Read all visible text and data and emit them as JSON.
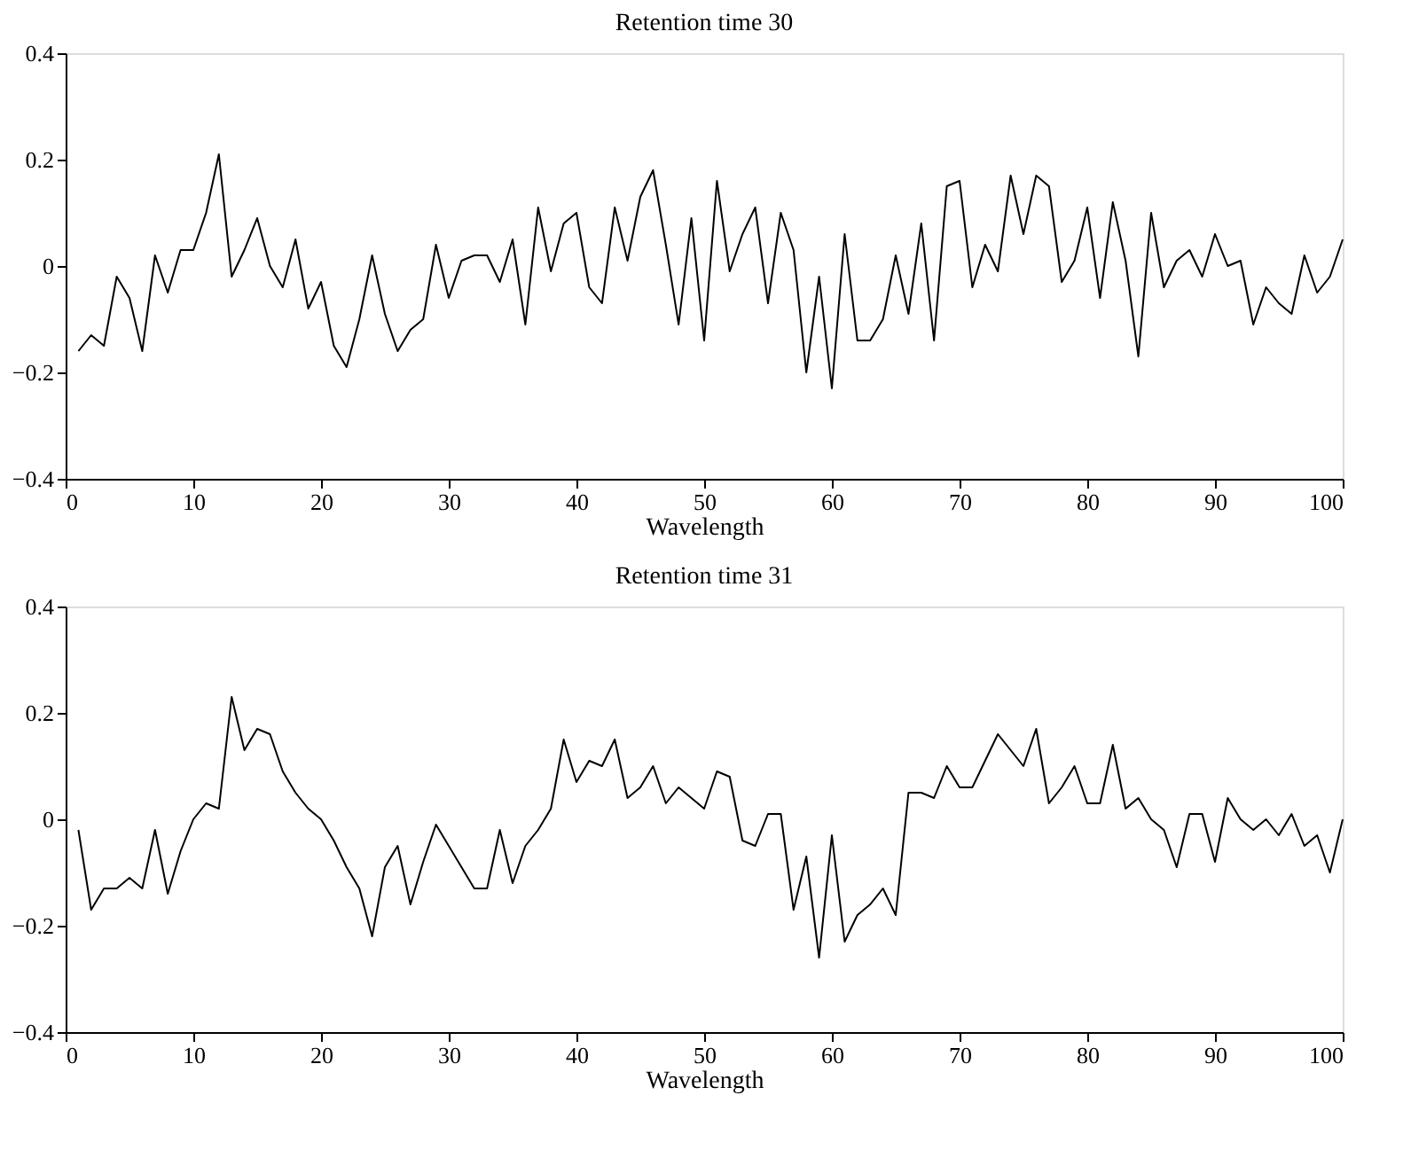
{
  "chart_data": [
    {
      "type": "line",
      "title": "Retention time 30",
      "xlabel": "Wavelength",
      "color": "#000000",
      "xlim": [
        0,
        100
      ],
      "xticks": [
        0,
        10,
        20,
        30,
        40,
        50,
        60,
        70,
        80,
        90,
        100
      ],
      "ylim": [
        -0.4,
        0.4
      ],
      "yticks": [
        -0.4,
        -0.2,
        0,
        0.2,
        0.4
      ],
      "grid": false,
      "x": [
        1,
        2,
        3,
        4,
        5,
        6,
        7,
        8,
        9,
        10,
        11,
        12,
        13,
        14,
        15,
        16,
        17,
        18,
        19,
        20,
        21,
        22,
        23,
        24,
        25,
        26,
        27,
        28,
        29,
        30,
        31,
        32,
        33,
        34,
        35,
        36,
        37,
        38,
        39,
        40,
        41,
        42,
        43,
        44,
        45,
        46,
        47,
        48,
        49,
        50,
        51,
        52,
        53,
        54,
        55,
        56,
        57,
        58,
        59,
        60,
        61,
        62,
        63,
        64,
        65,
        66,
        67,
        68,
        69,
        70,
        71,
        72,
        73,
        74,
        75,
        76,
        77,
        78,
        79,
        80,
        81,
        82,
        83,
        84,
        85,
        86,
        87,
        88,
        89,
        90,
        91,
        92,
        93,
        94,
        95,
        96,
        97,
        98,
        99,
        100
      ],
      "values": [
        -0.16,
        -0.13,
        -0.15,
        -0.02,
        -0.06,
        -0.16,
        0.02,
        -0.05,
        0.03,
        0.03,
        0.1,
        0.21,
        -0.02,
        0.03,
        0.09,
        0.0,
        -0.04,
        0.05,
        -0.08,
        -0.03,
        -0.15,
        -0.19,
        -0.1,
        0.02,
        -0.09,
        -0.16,
        -0.12,
        -0.1,
        0.04,
        -0.06,
        0.01,
        0.02,
        0.02,
        -0.03,
        0.05,
        -0.11,
        0.11,
        -0.01,
        0.08,
        0.1,
        -0.04,
        -0.07,
        0.11,
        0.01,
        0.13,
        0.18,
        0.04,
        -0.11,
        0.09,
        -0.14,
        0.16,
        -0.01,
        0.06,
        0.11,
        -0.07,
        0.1,
        0.03,
        -0.2,
        -0.02,
        -0.23,
        0.06,
        -0.14,
        -0.14,
        -0.1,
        0.02,
        -0.09,
        0.08,
        -0.14,
        0.15,
        0.16,
        -0.04,
        0.04,
        -0.01,
        0.17,
        0.06,
        0.17,
        0.15,
        -0.03,
        0.01,
        0.11,
        -0.06,
        0.12,
        0.01,
        -0.17,
        0.1,
        -0.04,
        0.01,
        0.03,
        -0.02,
        0.06,
        0.0,
        0.01,
        -0.11,
        -0.04,
        -0.07,
        -0.09,
        0.02,
        -0.05,
        -0.02,
        0.05
      ]
    },
    {
      "type": "line",
      "title": "Retention time 31",
      "xlabel": "Wavelength",
      "color": "#000000",
      "xlim": [
        0,
        100
      ],
      "xticks": [
        0,
        10,
        20,
        30,
        40,
        50,
        60,
        70,
        80,
        90,
        100
      ],
      "ylim": [
        -0.4,
        0.4
      ],
      "yticks": [
        -0.4,
        -0.2,
        0,
        0.2,
        0.4
      ],
      "grid": false,
      "x": [
        1,
        2,
        3,
        4,
        5,
        6,
        7,
        8,
        9,
        10,
        11,
        12,
        13,
        14,
        15,
        16,
        17,
        18,
        19,
        20,
        21,
        22,
        23,
        24,
        25,
        26,
        27,
        28,
        29,
        30,
        31,
        32,
        33,
        34,
        35,
        36,
        37,
        38,
        39,
        40,
        41,
        42,
        43,
        44,
        45,
        46,
        47,
        48,
        49,
        50,
        51,
        52,
        53,
        54,
        55,
        56,
        57,
        58,
        59,
        60,
        61,
        62,
        63,
        64,
        65,
        66,
        67,
        68,
        69,
        70,
        71,
        72,
        73,
        74,
        75,
        76,
        77,
        78,
        79,
        80,
        81,
        82,
        83,
        84,
        85,
        86,
        87,
        88,
        89,
        90,
        91,
        92,
        93,
        94,
        95,
        96,
        97,
        98,
        99,
        100
      ],
      "values": [
        -0.02,
        -0.17,
        -0.13,
        -0.13,
        -0.11,
        -0.13,
        -0.02,
        -0.14,
        -0.06,
        0.0,
        0.03,
        0.02,
        0.23,
        0.13,
        0.17,
        0.16,
        0.09,
        0.05,
        0.02,
        0.0,
        -0.04,
        -0.09,
        -0.13,
        -0.22,
        -0.09,
        -0.05,
        -0.16,
        -0.08,
        -0.01,
        -0.05,
        -0.09,
        -0.13,
        -0.13,
        -0.02,
        -0.12,
        -0.05,
        -0.02,
        0.02,
        0.15,
        0.07,
        0.11,
        0.1,
        0.15,
        0.04,
        0.06,
        0.1,
        0.03,
        0.06,
        0.04,
        0.02,
        0.09,
        0.08,
        -0.04,
        -0.05,
        0.01,
        0.01,
        -0.17,
        -0.07,
        -0.26,
        -0.03,
        -0.23,
        -0.18,
        -0.16,
        -0.13,
        -0.18,
        0.05,
        0.05,
        0.04,
        0.1,
        0.06,
        0.06,
        0.11,
        0.16,
        0.13,
        0.1,
        0.17,
        0.03,
        0.06,
        0.1,
        0.03,
        0.03,
        0.14,
        0.02,
        0.04,
        0.0,
        -0.02,
        -0.09,
        0.01,
        0.01,
        -0.08,
        0.04,
        0.0,
        -0.02,
        0.0,
        -0.03,
        0.01,
        -0.05,
        -0.03,
        -0.1,
        0.0
      ]
    }
  ]
}
